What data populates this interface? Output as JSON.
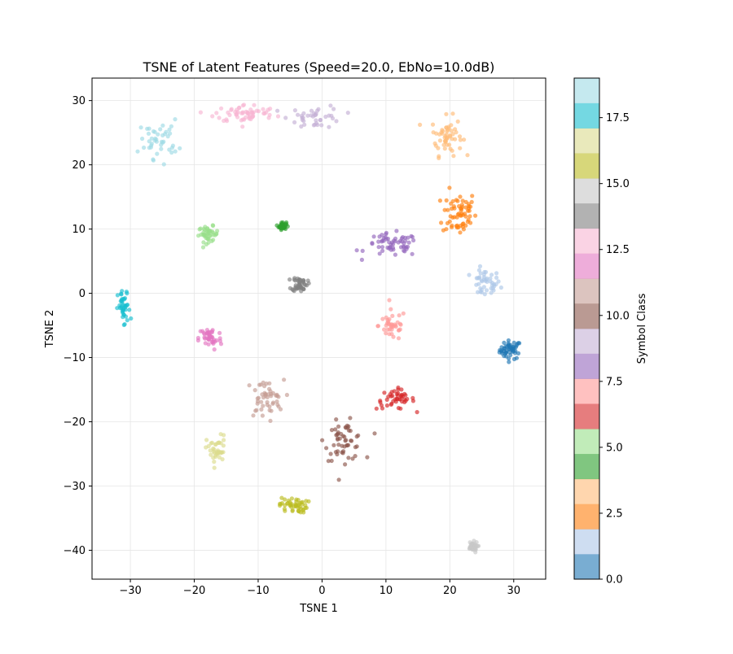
{
  "chart_data": {
    "type": "scatter",
    "title": "TSNE of Latent Features (Speed=20.0, EbNo=10.0dB)",
    "xlabel": "TSNE 1",
    "ylabel": "TSNE 2",
    "xlim": [
      -36,
      35
    ],
    "ylim": [
      -44.5,
      33.5
    ],
    "xticks": [
      -30,
      -20,
      -10,
      0,
      10,
      20,
      30
    ],
    "yticks": [
      -40,
      -30,
      -20,
      -10,
      0,
      10,
      20,
      30
    ],
    "grid": true,
    "colorbar": {
      "label": "Symbol Class",
      "colormap": "tab20",
      "range": [
        0,
        19
      ],
      "ticks": [
        "0.0",
        "2.5",
        "5.0",
        "7.5",
        "10.0",
        "12.5",
        "15.0",
        "17.5"
      ],
      "colors": [
        "#1f77b4",
        "#aec7e8",
        "#ff7f0e",
        "#ffbb78",
        "#2ca02c",
        "#98df8a",
        "#d62728",
        "#ff9896",
        "#9467bd",
        "#c5b0d5",
        "#8c564b",
        "#c49c94",
        "#e377c2",
        "#f7b6d2",
        "#7f7f7f",
        "#c7c7c7",
        "#bcbd22",
        "#dbdb8d",
        "#17becf",
        "#9edae5"
      ]
    },
    "clusters": [
      {
        "class": 0,
        "center": [
          29.5,
          -8.8
        ],
        "spread": [
          1.4,
          1.2
        ],
        "count": 50
      },
      {
        "class": 1,
        "center": [
          25.5,
          1.5
        ],
        "spread": [
          2.0,
          1.8
        ],
        "count": 45
      },
      {
        "class": 2,
        "center": [
          21.5,
          12.5
        ],
        "spread": [
          2.2,
          3.0
        ],
        "count": 65
      },
      {
        "class": 3,
        "center": [
          19.5,
          24.5
        ],
        "spread": [
          2.0,
          2.5
        ],
        "count": 55
      },
      {
        "class": 4,
        "center": [
          -6.2,
          10.5
        ],
        "spread": [
          0.5,
          0.5
        ],
        "count": 40
      },
      {
        "class": 5,
        "center": [
          -17.8,
          9.2
        ],
        "spread": [
          1.3,
          1.0
        ],
        "count": 45
      },
      {
        "class": 6,
        "center": [
          11.5,
          -16.5
        ],
        "spread": [
          2.5,
          1.3
        ],
        "count": 45
      },
      {
        "class": 7,
        "center": [
          11.0,
          -5.0
        ],
        "spread": [
          1.8,
          2.0
        ],
        "count": 40
      },
      {
        "class": 8,
        "center": [
          11.0,
          7.5
        ],
        "spread": [
          3.5,
          1.5
        ],
        "count": 60
      },
      {
        "class": 9,
        "center": [
          -1.0,
          27.5
        ],
        "spread": [
          3.5,
          1.5
        ],
        "count": 40
      },
      {
        "class": 10,
        "center": [
          3.5,
          -23.0
        ],
        "spread": [
          2.5,
          2.5
        ],
        "count": 55
      },
      {
        "class": 11,
        "center": [
          -9.0,
          -16.5
        ],
        "spread": [
          2.5,
          2.5
        ],
        "count": 50
      },
      {
        "class": 12,
        "center": [
          -17.5,
          -7.0
        ],
        "spread": [
          1.5,
          1.6
        ],
        "count": 45
      },
      {
        "class": 13,
        "center": [
          -12.0,
          28.0
        ],
        "spread": [
          4.0,
          1.2
        ],
        "count": 60
      },
      {
        "class": 14,
        "center": [
          -3.5,
          1.5
        ],
        "spread": [
          1.0,
          1.0
        ],
        "count": 45
      },
      {
        "class": 15,
        "center": [
          23.5,
          -39.5
        ],
        "spread": [
          0.7,
          0.7
        ],
        "count": 35
      },
      {
        "class": 16,
        "center": [
          -4.5,
          -33.0
        ],
        "spread": [
          1.8,
          1.0
        ],
        "count": 50
      },
      {
        "class": 17,
        "center": [
          -16.5,
          -24.5
        ],
        "spread": [
          1.3,
          2.0
        ],
        "count": 40
      },
      {
        "class": 18,
        "center": [
          -31.0,
          -2.5
        ],
        "spread": [
          0.8,
          2.5
        ],
        "count": 40
      },
      {
        "class": 19,
        "center": [
          -25.5,
          24.0
        ],
        "spread": [
          2.5,
          2.5
        ],
        "count": 45
      }
    ]
  }
}
